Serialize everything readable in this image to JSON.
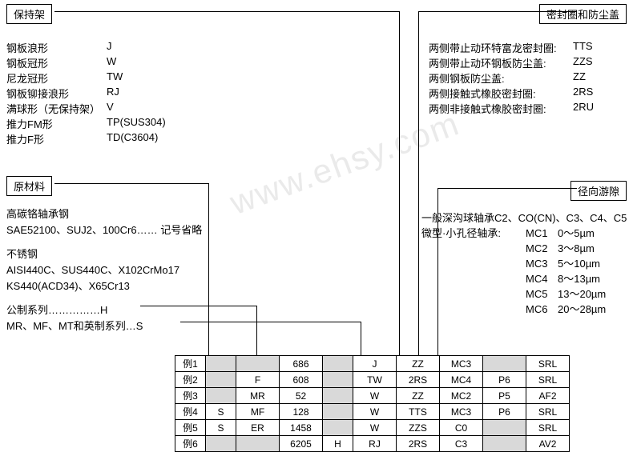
{
  "watermark": "www.ehsy.com",
  "cage": {
    "title": "保持架",
    "rows": [
      {
        "label": "钢板浪形",
        "code": "J"
      },
      {
        "label": "钢板冠形",
        "code": "W"
      },
      {
        "label": "尼龙冠形",
        "code": "TW"
      },
      {
        "label": "钢板铆接浪形",
        "code": "RJ"
      },
      {
        "label": "满球形（无保持架）",
        "code": "V"
      },
      {
        "label": "推力FM形",
        "code": "TP(SUS304)"
      },
      {
        "label": "推力F形",
        "code": "TD(C3604)"
      }
    ]
  },
  "seal": {
    "title": "密封圈和防尘盖",
    "rows": [
      {
        "label": "两侧带止动环特富龙密封圈:",
        "code": "TTS"
      },
      {
        "label": "两侧带止动环钢板防尘盖:",
        "code": "ZZS"
      },
      {
        "label": "两侧钢板防尘盖:",
        "code": "ZZ"
      },
      {
        "label": "两侧接触式橡胶密封圈:",
        "code": "2RS"
      },
      {
        "label": "两侧非接触式橡胶密封圈:",
        "code": "2RU"
      }
    ]
  },
  "material": {
    "title": "原材料",
    "line1": "高碳铬轴承钢",
    "line2": "SAE52100、SUJ2、100Cr6…… 记号省略",
    "line3": "不锈钢",
    "line4": "AISI440C、SUS440C、X102CrMo17",
    "line5": "KS440(ACD34)、X65Cr13",
    "line6": "公制系列……………H",
    "line7": "MR、MF、MT和英制系列…S"
  },
  "clearance": {
    "title": "径向游隙",
    "header": "一般深沟球轴承C2、CO(CN)、C3、C4、C5",
    "subheader": "微型·小孔径轴承:",
    "rows": [
      {
        "label": "MC1",
        "val": "0～5µm"
      },
      {
        "label": "MC2",
        "val": "3～8µm"
      },
      {
        "label": "MC3",
        "val": "5～10µm"
      },
      {
        "label": "MC4",
        "val": "8～13µm"
      },
      {
        "label": "MC5",
        "val": "13～20µm"
      },
      {
        "label": "MC6",
        "val": "20～28µm"
      }
    ]
  },
  "table": {
    "rows": [
      [
        "例1",
        "",
        "",
        "686",
        "",
        "J",
        "ZZ",
        "MC3",
        "",
        "SRL"
      ],
      [
        "例2",
        "",
        "F",
        "608",
        "",
        "TW",
        "2RS",
        "MC4",
        "P6",
        "SRL"
      ],
      [
        "例3",
        "",
        "MR",
        "52",
        "",
        "W",
        "ZZ",
        "MC2",
        "P5",
        "AF2"
      ],
      [
        "例4",
        "S",
        "MF",
        "128",
        "",
        "W",
        "TTS",
        "MC3",
        "P6",
        "SRL"
      ],
      [
        "例5",
        "S",
        "ER",
        "1458",
        "",
        "W",
        "ZZS",
        "C0",
        "",
        "SRL"
      ],
      [
        "例6",
        "",
        "",
        "6205",
        "H",
        "RJ",
        "2RS",
        "C3",
        "",
        "AV2"
      ]
    ],
    "highlights": {
      "0": [
        1,
        2,
        4,
        8
      ],
      "1": [
        1,
        4
      ],
      "2": [
        1,
        4
      ],
      "3": [
        4
      ],
      "4": [
        4,
        8
      ],
      "5": [
        1,
        2,
        8
      ]
    }
  }
}
